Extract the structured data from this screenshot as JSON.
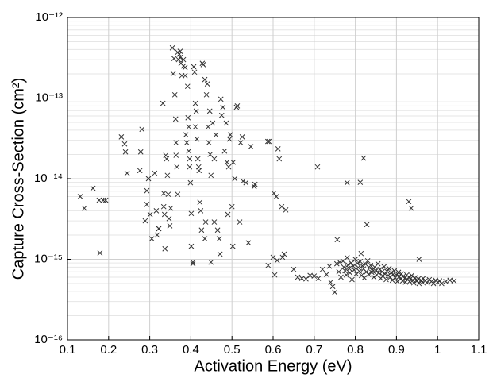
{
  "chart_data": {
    "type": "scatter",
    "xlabel": "Activation Energy (eV)",
    "ylabel": "Capture Cross-Section (cm²)",
    "xlim": [
      0.1,
      1.1
    ],
    "xticks": [
      0.1,
      0.2,
      0.3,
      0.4,
      0.5,
      0.6,
      0.7,
      0.8,
      0.9,
      1,
      1.1
    ],
    "ylim": [
      1e-16,
      1e-12
    ],
    "yscale": "log",
    "yticks": [
      {
        "value": 1e-16,
        "label": "10⁻¹⁶"
      },
      {
        "value": 1e-15,
        "label": "10⁻¹⁵"
      },
      {
        "value": 1e-14,
        "label": "10⁻¹⁴"
      },
      {
        "value": 1e-13,
        "label": "10⁻¹³"
      },
      {
        "value": 1e-12,
        "label": "10⁻¹²"
      }
    ],
    "grid": true,
    "minor_grid": true,
    "color": "#333333",
    "x": [
      0.131,
      0.141,
      0.162,
      0.177,
      0.187,
      0.193,
      0.179,
      0.231,
      0.239,
      0.241,
      0.245,
      0.276,
      0.278,
      0.281,
      0.289,
      0.293,
      0.293,
      0.297,
      0.301,
      0.305,
      0.312,
      0.316,
      0.322,
      0.322,
      0.318,
      0.332,
      0.334,
      0.334,
      0.336,
      0.337,
      0.339,
      0.341,
      0.343,
      0.345,
      0.347,
      0.349,
      0.351,
      0.355,
      0.357,
      0.359,
      0.361,
      0.363,
      0.364,
      0.364,
      0.366,
      0.368,
      0.368,
      0.37,
      0.372,
      0.374,
      0.374,
      0.376,
      0.378,
      0.382,
      0.382,
      0.386,
      0.386,
      0.388,
      0.39,
      0.392,
      0.393,
      0.395,
      0.395,
      0.397,
      0.397,
      0.399,
      0.401,
      0.401,
      0.405,
      0.405,
      0.407,
      0.409,
      0.411,
      0.411,
      0.413,
      0.415,
      0.417,
      0.419,
      0.42,
      0.422,
      0.424,
      0.426,
      0.428,
      0.43,
      0.434,
      0.434,
      0.436,
      0.438,
      0.44,
      0.442,
      0.444,
      0.446,
      0.447,
      0.449,
      0.449,
      0.453,
      0.457,
      0.457,
      0.461,
      0.465,
      0.469,
      0.471,
      0.473,
      0.475,
      0.478,
      0.482,
      0.486,
      0.488,
      0.49,
      0.492,
      0.494,
      0.496,
      0.5,
      0.502,
      0.503,
      0.507,
      0.511,
      0.513,
      0.519,
      0.521,
      0.525,
      0.527,
      0.534,
      0.54,
      0.546,
      0.554,
      0.556,
      0.587,
      0.59,
      0.602,
      0.608,
      0.612,
      0.615,
      0.621,
      0.623,
      0.627,
      0.631,
      0.6,
      0.61,
      0.588,
      0.604,
      0.708,
      0.78,
      0.762,
      0.814,
      0.828,
      0.737,
      0.756,
      0.82,
      0.812,
      0.93,
      0.936,
      0.65,
      0.66,
      0.67,
      0.68,
      0.69,
      0.7,
      0.71,
      0.72,
      0.73,
      0.74,
      0.745,
      0.75,
      0.755,
      0.76,
      0.765,
      0.77,
      0.772,
      0.775,
      0.778,
      0.78,
      0.782,
      0.785,
      0.787,
      0.79,
      0.792,
      0.795,
      0.797,
      0.8,
      0.802,
      0.805,
      0.807,
      0.81,
      0.812,
      0.815,
      0.817,
      0.82,
      0.822,
      0.825,
      0.827,
      0.83,
      0.832,
      0.835,
      0.837,
      0.84,
      0.842,
      0.845,
      0.847,
      0.85,
      0.852,
      0.855,
      0.857,
      0.86,
      0.862,
      0.865,
      0.867,
      0.87,
      0.872,
      0.875,
      0.877,
      0.88,
      0.882,
      0.885,
      0.887,
      0.89,
      0.892,
      0.895,
      0.897,
      0.9,
      0.902,
      0.905,
      0.907,
      0.91,
      0.912,
      0.915,
      0.917,
      0.92,
      0.922,
      0.925,
      0.927,
      0.93,
      0.932,
      0.935,
      0.937,
      0.94,
      0.942,
      0.945,
      0.95,
      0.953,
      0.955,
      0.96,
      0.963,
      0.965,
      0.97,
      0.975,
      0.98,
      0.985,
      0.99,
      0.995,
      1.0,
      1.005,
      1.01,
      1.02,
      1.03,
      1.04,
      0.955
    ],
    "values": [
      6e-15,
      4.3e-15,
      7.6e-15,
      5.4e-15,
      5.4e-15,
      5.4e-15,
      1.2e-15,
      3.3e-14,
      2.7e-14,
      2.15e-14,
      1.17e-14,
      1.26e-14,
      2.15e-14,
      4.1e-14,
      3e-15,
      7.1e-15,
      4.8e-15,
      1e-14,
      3.6e-15,
      1.8e-15,
      1.17e-14,
      4e-15,
      2.4e-15,
      2.4e-15,
      2e-15,
      8.6e-14,
      6.6e-15,
      4.5e-15,
      3.6e-15,
      1.35e-15,
      1.95e-14,
      1.76e-14,
      1.1e-14,
      6.4e-15,
      3.2e-15,
      2.6e-15,
      4.3e-15,
      4.2e-13,
      2e-13,
      3.1e-13,
      1.1e-13,
      5.5e-14,
      2.8e-14,
      1.95e-14,
      1.4e-14,
      3.7e-13,
      6.4e-15,
      3e-13,
      3.5e-13,
      3.8e-13,
      3.2e-13,
      2.7e-13,
      1.9e-13,
      3e-13,
      2.5e-13,
      2.4e-13,
      1.9e-13,
      3.5e-14,
      2.8e-14,
      1.4e-13,
      5.7e-14,
      4.4e-14,
      2.2e-14,
      1.76e-14,
      1.4e-14,
      8.9e-15,
      3.7e-15,
      1.45e-15,
      9.2e-16,
      8.8e-16,
      2.45e-13,
      2.1e-13,
      8.6e-14,
      4.4e-14,
      6.9e-14,
      3.1e-14,
      1.76e-14,
      1.4e-14,
      1.26e-14,
      5.1e-15,
      4e-15,
      2.3e-15,
      2.7e-13,
      2.6e-13,
      1.7e-13,
      1.8e-15,
      2.9e-15,
      1.1e-13,
      1.5e-13,
      4.4e-14,
      2.8e-14,
      6.9e-14,
      2e-14,
      1.1e-14,
      9.2e-16,
      4.9e-14,
      1.76e-14,
      2.9e-15,
      3.5e-14,
      2.3e-15,
      1.8e-15,
      1.16e-15,
      9.7e-14,
      6.1e-14,
      7.7e-14,
      2.2e-14,
      4.9e-14,
      1.6e-14,
      3.6e-15,
      1.4e-14,
      3.1e-14,
      3.5e-14,
      4.5e-15,
      1.45e-15,
      1.6e-14,
      1e-14,
      7.7e-14,
      8e-14,
      2.9e-15,
      2.8e-14,
      3.3e-14,
      9.3e-15,
      8.9e-15,
      1.6e-15,
      2.5e-14,
      8e-15,
      8.5e-15,
      2.9e-14,
      2.9e-14,
      6.6e-15,
      6e-15,
      2.35e-14,
      1.76e-14,
      4.5e-15,
      1.06e-15,
      1.16e-15,
      4.1e-15,
      1.06e-15,
      9.7e-16,
      8.4e-16,
      6.4e-16,
      1.4e-14,
      8.9e-15,
      9.2e-16,
      1.18e-15,
      2.7e-15,
      8.2e-16,
      1.75e-15,
      1.8e-14,
      9e-15,
      5.2e-15,
      4.3e-15,
      7.5e-16,
      6e-16,
      5.8e-16,
      5.7e-16,
      6.3e-16,
      6.2e-16,
      5.8e-16,
      7.5e-16,
      6.5e-16,
      5.2e-16,
      4.6e-16,
      3.9e-16,
      8.8e-16,
      7e-16,
      6e-16,
      9.5e-16,
      8e-16,
      7.2e-16,
      6.4e-16,
      1.05e-15,
      8.5e-16,
      7.7e-16,
      6.8e-16,
      9e-16,
      5.6e-16,
      8.2e-16,
      7.4e-16,
      1e-15,
      6.6e-16,
      8.9e-16,
      7.9e-16,
      7.1e-16,
      9.4e-16,
      6.3e-16,
      8.3e-16,
      7.6e-16,
      5.9e-16,
      8.7e-16,
      7e-16,
      9.6e-16,
      6.5e-16,
      7.8e-16,
      8.4e-16,
      6.9e-16,
      7.4e-16,
      6e-16,
      8e-16,
      7.2e-16,
      6.4e-16,
      8.8e-16,
      6.8e-16,
      7.5e-16,
      5.8e-16,
      7e-16,
      6.2e-16,
      8.1e-16,
      6.6e-16,
      5.6e-16,
      7.1e-16,
      6.3e-16,
      7.7e-16,
      6e-16,
      6.8e-16,
      5.5e-16,
      6.5e-16,
      7.2e-16,
      5.9e-16,
      6.4e-16,
      5.3e-16,
      6.9e-16,
      6.1e-16,
      5.7e-16,
      6.6e-16,
      5.4e-16,
      6.2e-16,
      5.8e-16,
      5.2e-16,
      6.4e-16,
      5.6e-16,
      6e-16,
      5.3e-16,
      5.8e-16,
      6.3e-16,
      5.5e-16,
      5.1e-16,
      5.9e-16,
      5.4e-16,
      5.7e-16,
      5e-16,
      5.5e-16,
      5.2e-16,
      5.8e-16,
      5.4e-16,
      5.1e-16,
      5.6e-16,
      5.3e-16,
      5e-16,
      5.5e-16,
      5.2e-16,
      5.4e-16,
      5e-16,
      5.3e-16,
      5.5e-16,
      5.4e-16,
      1e-15
    ]
  }
}
